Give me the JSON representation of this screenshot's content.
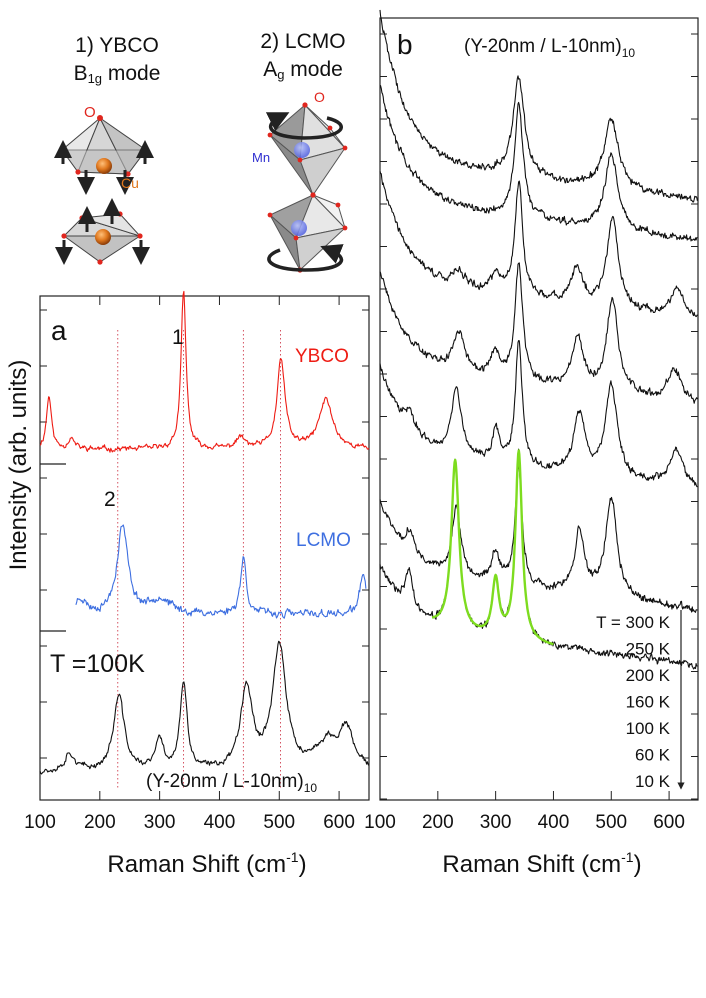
{
  "figure": {
    "colors": {
      "ybco": "#ee1c14",
      "lcmo": "#3e6fe0",
      "sl": "#111111",
      "fit": "#7ddc1f",
      "oxygen": "#e0261e",
      "cu": "#e0781e",
      "mn": "#3030d0"
    }
  },
  "schematics": {
    "ybco": {
      "title": "1) YBCO",
      "mode_main": "B",
      "mode_sub": "1g",
      "mode_tail": " mode",
      "oxygen_label": "O",
      "cu_label": "Cu",
      "icon": "ybco-b1g-pyramid-icon"
    },
    "lcmo": {
      "title": "2) LCMO",
      "mode_main": "A",
      "mode_sub": "g",
      "mode_tail": " mode",
      "oxygen_label": "O",
      "mn_label": "Mn",
      "icon": "lcmo-ag-octahedra-icon"
    }
  },
  "chart_data": [
    {
      "panel": "a",
      "type": "line",
      "panel_label": "a",
      "xlabel_main": "Raman Shift (cm",
      "xlabel_sup": "-1",
      "xlabel_end": ")",
      "ylabel": "Intensity (arb. units)",
      "xlim": [
        100,
        650
      ],
      "xticks": [
        100,
        200,
        300,
        400,
        500,
        600
      ],
      "temperature_label": "T =100K",
      "reference_lines": [
        230,
        340,
        440,
        502
      ],
      "peak_markers": [
        {
          "label": "1",
          "x": 340
        },
        {
          "label": "2",
          "x": 230
        }
      ],
      "series": [
        {
          "name": "YBCO",
          "x_range": [
            100,
            650
          ],
          "baseline": 0.08,
          "noise": 0.012,
          "peaks": [
            [
              115,
              5,
              0.34
            ],
            [
              152,
              6,
              0.07
            ],
            [
              340,
              5,
              1.0
            ],
            [
              435,
              9,
              0.07
            ],
            [
              503,
              8,
              0.56
            ],
            [
              578,
              14,
              0.31
            ]
          ]
        },
        {
          "name": "LCMO",
          "x_range": [
            160,
            645
          ],
          "baseline": 0.07,
          "noise": 0.018,
          "peaks": [
            [
              168,
              10,
              0.1
            ],
            [
              238,
              11,
              0.58
            ],
            [
              300,
              20,
              0.1
            ],
            [
              440,
              6,
              0.37
            ],
            [
              640,
              6,
              0.28
            ]
          ]
        },
        {
          "name": "(Y-20nm / L-10nm)10",
          "label_main": "(Y-20nm / L-10nm)",
          "label_sub": "10",
          "x_range": [
            100,
            650
          ],
          "baseline": 0.12,
          "noise": 0.014,
          "peaks": [
            [
              150,
              10,
              0.12
            ],
            [
              232,
              11,
              0.5
            ],
            [
              300,
              8,
              0.2
            ],
            [
              340,
              7,
              0.58
            ],
            [
              445,
              12,
              0.55
            ],
            [
              500,
              14,
              0.82
            ],
            [
              580,
              20,
              0.18
            ],
            [
              612,
              14,
              0.26
            ]
          ]
        }
      ]
    },
    {
      "panel": "b",
      "type": "line",
      "panel_label": "b",
      "title_main": "(Y-20nm / L-10nm)",
      "title_sub": "10",
      "xlabel_main": "Raman Shift (cm",
      "xlabel_sup": "-1",
      "xlabel_end": ")",
      "xlim": [
        100,
        650
      ],
      "xticks": [
        100,
        200,
        300,
        400,
        500,
        600
      ],
      "temperatures": [
        "T = 300 K",
        "250 K",
        "200 K",
        "160 K",
        "100 K",
        "60 K",
        "10 K"
      ],
      "series": [
        {
          "name": "300 K",
          "peaks": [
            [
              340,
              12,
              0.82
            ],
            [
              500,
              15,
              0.58
            ]
          ]
        },
        {
          "name": "250 K",
          "peaks": [
            [
              340,
              9,
              0.9
            ],
            [
              500,
              13,
              0.62
            ]
          ]
        },
        {
          "name": "200 K",
          "peaks": [
            [
              237,
              13,
              0.12
            ],
            [
              300,
              10,
              0.15
            ],
            [
              340,
              8,
              0.95
            ],
            [
              440,
              12,
              0.3
            ],
            [
              502,
              12,
              0.75
            ],
            [
              615,
              12,
              0.25
            ]
          ]
        },
        {
          "name": "160 K",
          "peaks": [
            [
              237,
              12,
              0.32
            ],
            [
              300,
              9,
              0.2
            ],
            [
              340,
              8,
              0.95
            ],
            [
              442,
              11,
              0.42
            ],
            [
              502,
              12,
              0.75
            ],
            [
              610,
              14,
              0.25
            ]
          ]
        },
        {
          "name": "100 K",
          "peaks": [
            [
              150,
              10,
              0.15
            ],
            [
              232,
              10,
              0.55
            ],
            [
              300,
              8,
              0.25
            ],
            [
              340,
              7,
              1.0
            ],
            [
              445,
              11,
              0.5
            ],
            [
              500,
              12,
              0.75
            ],
            [
              612,
              14,
              0.3
            ]
          ]
        },
        {
          "name": "60 K",
          "peaks": [
            [
              152,
              9,
              0.18
            ],
            [
              232,
              9,
              0.55
            ],
            [
              300,
              8,
              0.25
            ],
            [
              340,
              7,
              0.95
            ],
            [
              445,
              10,
              0.5
            ],
            [
              500,
              12,
              0.8
            ]
          ]
        },
        {
          "name": "10 K",
          "peaks": [
            [
              150,
              9,
              0.2
            ],
            [
              230,
              8,
              0.9
            ],
            [
              300,
              7,
              0.3
            ],
            [
              340,
              7,
              1.0
            ]
          ]
        }
      ],
      "fit": {
        "name": "fit",
        "x_range": [
          190,
          400
        ],
        "peaks": [
          [
            230,
            8,
            0.9
          ],
          [
            300,
            7,
            0.3
          ],
          [
            340,
            7,
            1.0
          ]
        ]
      }
    }
  ]
}
